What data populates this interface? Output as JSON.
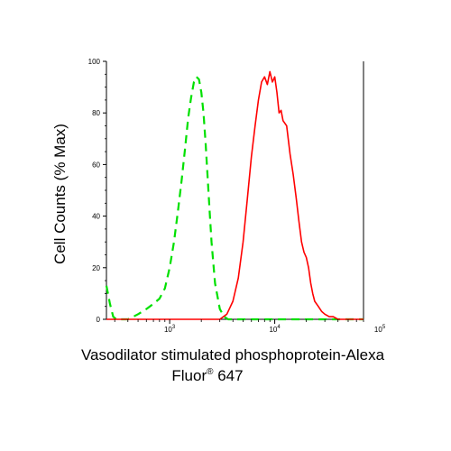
{
  "chart_data": {
    "type": "line",
    "title": "",
    "ylabel": "Cell Counts (% Max)",
    "xlabel_line1": "Vasodilator stimulated phosphoprotein-Alexa",
    "xlabel_line2_main": "Fluor",
    "xlabel_line2_sup": "®",
    "xlabel_line2_rest": " 647",
    "x_scale": "log",
    "xlim": [
      250,
      70000
    ],
    "ylim": [
      0,
      100
    ],
    "grid": false,
    "y_ticks": [
      0,
      20,
      40,
      60,
      80,
      100
    ],
    "y_tick_labels": [
      "0",
      "20",
      "40",
      "60",
      "80",
      "100"
    ],
    "x_major_ticks": [
      1000,
      10000,
      100000
    ],
    "x_tick_labels": [
      {
        "base": "10",
        "exp": "3"
      },
      {
        "base": "10",
        "exp": "4"
      },
      {
        "base": "10",
        "exp": "5"
      }
    ],
    "series": [
      {
        "color": "#00e000",
        "dash": "dashed",
        "x": [
          250,
          270,
          290,
          310,
          350,
          400,
          450,
          500,
          600,
          700,
          800,
          900,
          1000,
          1100,
          1200,
          1300,
          1400,
          1500,
          1600,
          1700,
          1800,
          1900,
          2000,
          2100,
          2200,
          2300,
          2400,
          2500,
          2700,
          3000,
          3300,
          3600,
          4000,
          5000,
          8000,
          20000,
          70000
        ],
        "y": [
          13,
          6,
          1,
          0,
          0,
          0,
          1,
          2,
          4,
          6,
          8,
          12,
          20,
          30,
          42,
          54,
          66,
          78,
          86,
          92,
          94,
          93,
          88,
          80,
          68,
          55,
          42,
          30,
          14,
          4,
          1,
          0,
          0,
          0,
          0,
          0,
          0
        ]
      },
      {
        "color": "#ff0000",
        "dash": "solid",
        "x": [
          250,
          3000,
          3500,
          4000,
          4500,
          5000,
          5500,
          6000,
          6500,
          7000,
          7500,
          8000,
          8500,
          9000,
          9500,
          10000,
          10500,
          11000,
          11500,
          12000,
          13000,
          14000,
          15000,
          16000,
          17000,
          18000,
          19000,
          20000,
          21000,
          22000,
          23000,
          24000,
          26000,
          28000,
          30000,
          33000,
          36000,
          40000,
          45000,
          50000,
          60000,
          70000
        ],
        "y": [
          0,
          0,
          2,
          7,
          16,
          30,
          47,
          63,
          75,
          85,
          92,
          94,
          91,
          96,
          92,
          94,
          88,
          80,
          81,
          77,
          75,
          64,
          56,
          47,
          38,
          30,
          26,
          24,
          20,
          14,
          10,
          7,
          5,
          3,
          2,
          1,
          1,
          0,
          0,
          0,
          0,
          0
        ]
      }
    ]
  }
}
